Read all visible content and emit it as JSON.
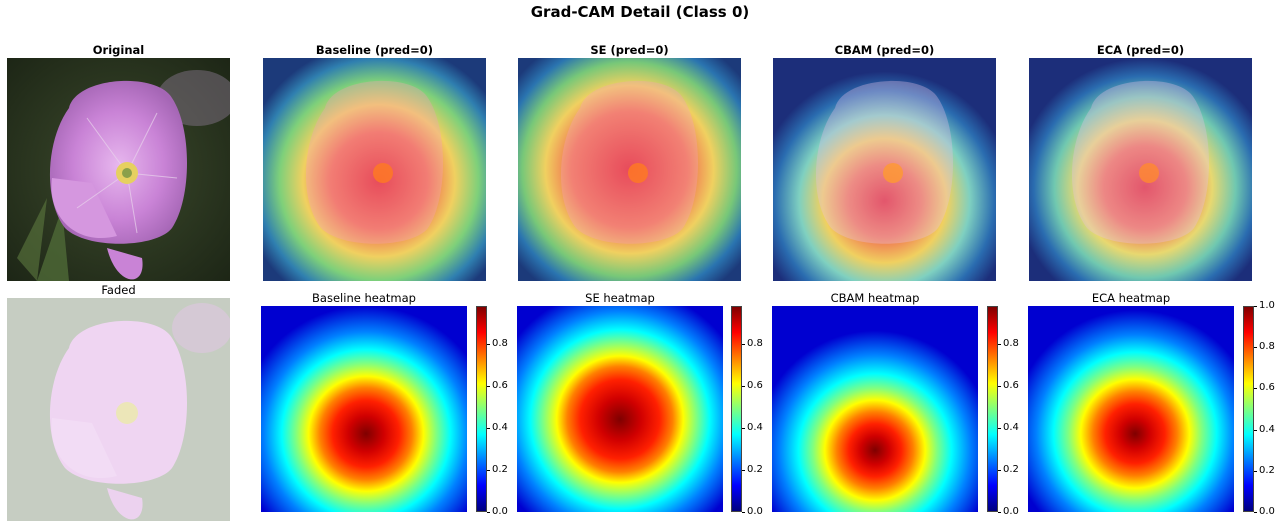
{
  "figure": {
    "title": "Grad-CAM Detail (Class 0)"
  },
  "top_row": [
    {
      "title": "Original",
      "kind": "original"
    },
    {
      "title": "Baseline (pred=0)",
      "kind": "overlay"
    },
    {
      "title": "SE (pred=0)",
      "kind": "overlay"
    },
    {
      "title": "CBAM (pred=0)",
      "kind": "overlay"
    },
    {
      "title": "ECA (pred=0)",
      "kind": "overlay"
    }
  ],
  "bottom_row": [
    {
      "title": "Faded",
      "kind": "faded"
    },
    {
      "title": "Baseline heatmap",
      "kind": "heatmap"
    },
    {
      "title": "SE heatmap",
      "kind": "heatmap"
    },
    {
      "title": "CBAM heatmap",
      "kind": "heatmap"
    },
    {
      "title": "ECA heatmap",
      "kind": "heatmap"
    }
  ],
  "colorbars": [
    {
      "ticks": [
        "0.0",
        "0.2",
        "0.4",
        "0.6",
        "0.8"
      ],
      "max": 0.98
    },
    {
      "ticks": [
        "0.0",
        "0.2",
        "0.4",
        "0.6",
        "0.8"
      ],
      "max": 0.98
    },
    {
      "ticks": [
        "0.0",
        "0.2",
        "0.4",
        "0.6",
        "0.8"
      ],
      "max": 0.98
    },
    {
      "ticks": [
        "0.0",
        "0.2",
        "0.4",
        "0.6",
        "0.8",
        "1.0"
      ],
      "max": 1.0
    }
  ],
  "colors": {
    "jet": [
      "#00007f",
      "#0000ff",
      "#007fff",
      "#00ffff",
      "#7fff7f",
      "#ffff00",
      "#ff7f00",
      "#ff0000",
      "#7f0000"
    ],
    "petal": "#c983d6",
    "background_leaf": "#2e3a24",
    "flower_center": "#e6d060"
  }
}
